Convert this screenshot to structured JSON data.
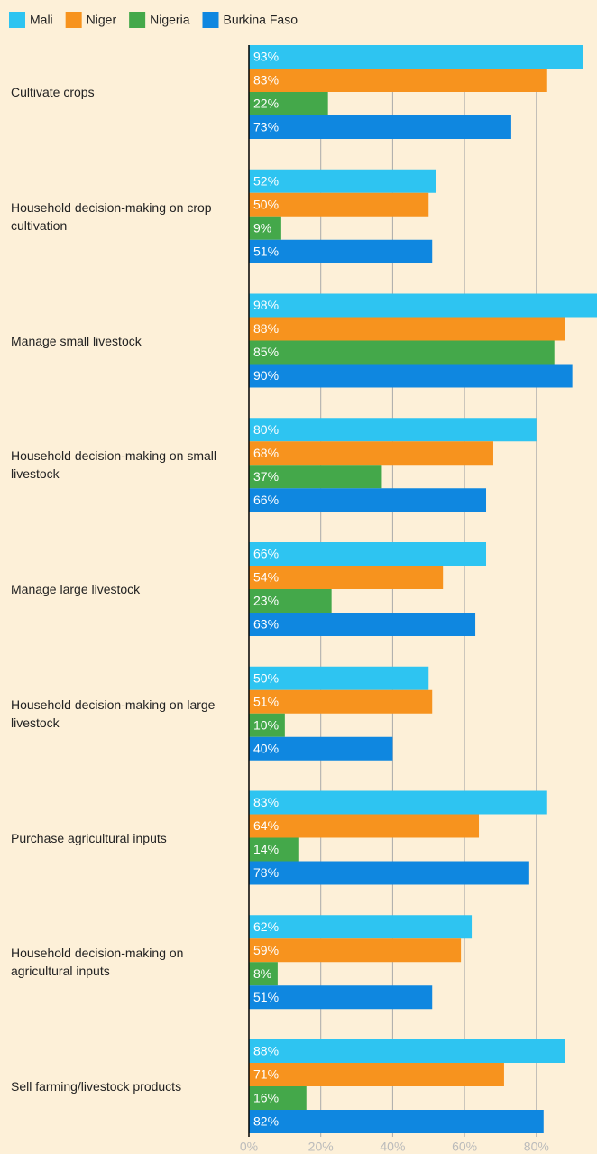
{
  "chart_data": {
    "type": "bar",
    "orientation": "horizontal",
    "categories": [
      "Cultivate crops",
      "Household decision-making on crop cultivation",
      "Manage small livestock",
      "Household decision-making on small livestock",
      "Manage large livestock",
      "Household decision-making on large livestock",
      "Purchase agricultural inputs",
      "Household decision-making on agricultural inputs",
      "Sell farming/livestock products"
    ],
    "series": [
      {
        "name": "Mali",
        "color": "#2ec4f1",
        "values": [
          93,
          52,
          98,
          80,
          66,
          50,
          83,
          62,
          88
        ],
        "value_labels": [
          "93%",
          "52%",
          "98%",
          "80%",
          "66%",
          "50%",
          "83%",
          "62%",
          "88%"
        ]
      },
      {
        "name": "Niger",
        "color": "#f7931e",
        "values": [
          83,
          50,
          88,
          68,
          54,
          51,
          64,
          59,
          71
        ],
        "value_labels": [
          "83%",
          "50%",
          "88%",
          "68%",
          "54%",
          "51%",
          "64%",
          "59%",
          "71%"
        ]
      },
      {
        "name": "Nigeria",
        "color": "#44a84a",
        "values": [
          22,
          9,
          85,
          37,
          23,
          10,
          14,
          8,
          16
        ],
        "value_labels": [
          "22%",
          "9%",
          "85%",
          "37%",
          "23%",
          "10%",
          "14%",
          "8%",
          "16%"
        ]
      },
      {
        "name": "Burkina Faso",
        "color": "#0f87e0",
        "values": [
          73,
          51,
          90,
          66,
          63,
          40,
          78,
          51,
          82
        ],
        "value_labels": [
          "73%",
          "51%",
          "90%",
          "66%",
          "63%",
          "40%",
          "78%",
          "51%",
          "82%"
        ]
      }
    ],
    "xlim": [
      0,
      97
    ],
    "xticks": [
      {
        "value": 0,
        "label": "0%"
      },
      {
        "value": 20,
        "label": "20%"
      },
      {
        "value": 40,
        "label": "40%"
      },
      {
        "value": 60,
        "label": "60%"
      },
      {
        "value": 80,
        "label": "80%"
      }
    ],
    "grid": true,
    "legend": "top"
  }
}
